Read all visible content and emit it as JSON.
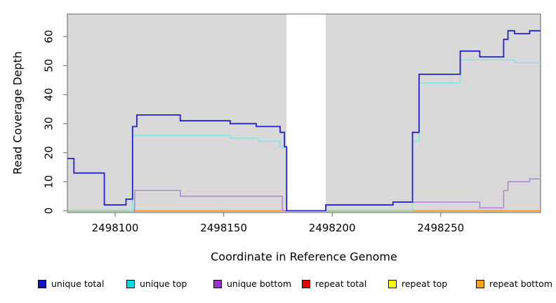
{
  "chart_data": {
    "type": "line",
    "subtype": "step-coverage-plot",
    "title": "",
    "xlabel": "Coordinate in Reference Genome",
    "ylabel": "Read Coverage Depth",
    "xlim": [
      2498078,
      2498296
    ],
    "ylim": [
      0,
      68
    ],
    "x_ticks": [
      2498100,
      2498150,
      2498200,
      2498250
    ],
    "y_ticks": [
      0,
      10,
      20,
      30,
      40,
      50,
      60
    ],
    "grid": false,
    "plot_background": "#d9d9d9",
    "no_data_region": {
      "x_start": 2498179,
      "x_end": 2498197,
      "color": "#ffffff"
    },
    "series": [
      {
        "name": "unique total",
        "color": "#2121ce",
        "points": [
          [
            2498078,
            18
          ],
          [
            2498081,
            13
          ],
          [
            2498095,
            2
          ],
          [
            2498105,
            4
          ],
          [
            2498108,
            29
          ],
          [
            2498110,
            33
          ],
          [
            2498130,
            31
          ],
          [
            2498153,
            30
          ],
          [
            2498165,
            29
          ],
          [
            2498176,
            27
          ],
          [
            2498178,
            22
          ],
          [
            2498179,
            0
          ],
          [
            2498197,
            2
          ],
          [
            2498228,
            3
          ],
          [
            2498237,
            27
          ],
          [
            2498240,
            47
          ],
          [
            2498259,
            55
          ],
          [
            2498268,
            53
          ],
          [
            2498279,
            59
          ],
          [
            2498281,
            62
          ],
          [
            2498284,
            61
          ],
          [
            2498291,
            62
          ]
        ]
      },
      {
        "name": "unique top",
        "color": "#7ce8e8",
        "points": [
          [
            2498078,
            0
          ],
          [
            2498108,
            26
          ],
          [
            2498153,
            25
          ],
          [
            2498166,
            24
          ],
          [
            2498176,
            22
          ],
          [
            2498179,
            0
          ],
          [
            2498237,
            24
          ],
          [
            2498240,
            44
          ],
          [
            2498259,
            52
          ],
          [
            2498284,
            51
          ]
        ]
      },
      {
        "name": "unique bottom",
        "color": "#b183db",
        "points": [
          [
            2498078,
            0
          ],
          [
            2498109,
            7
          ],
          [
            2498130,
            5
          ],
          [
            2498177,
            0
          ],
          [
            2498197,
            2
          ],
          [
            2498228,
            3
          ],
          [
            2498268,
            1
          ],
          [
            2498279,
            7
          ],
          [
            2498281,
            10
          ],
          [
            2498291,
            11
          ]
        ]
      },
      {
        "name": "repeat total",
        "color": "#dd0000",
        "points": [
          [
            2498078,
            0
          ]
        ]
      },
      {
        "name": "repeat top",
        "color": "#f0f000",
        "points": [
          [
            2498078,
            0
          ]
        ]
      },
      {
        "name": "repeat bottom",
        "color": "#ff9a1f",
        "points": [
          [
            2498078,
            0
          ]
        ]
      }
    ],
    "zero_line_overlays": [
      {
        "x_start": 2498078,
        "x_end": 2498106,
        "color": "#97cf97"
      },
      {
        "x_start": 2498197,
        "x_end": 2498237,
        "color": "#97cf97"
      }
    ],
    "legend": {
      "position": "bottom",
      "entries": [
        {
          "label": "unique total",
          "color": "#1111cc"
        },
        {
          "label": "unique top",
          "color": "#00e0e0"
        },
        {
          "label": "unique bottom",
          "color": "#9933cc"
        },
        {
          "label": "repeat total",
          "color": "#ee0000"
        },
        {
          "label": "repeat top",
          "color": "#ffff00"
        },
        {
          "label": "repeat bottom",
          "color": "#ffa012"
        }
      ]
    }
  }
}
